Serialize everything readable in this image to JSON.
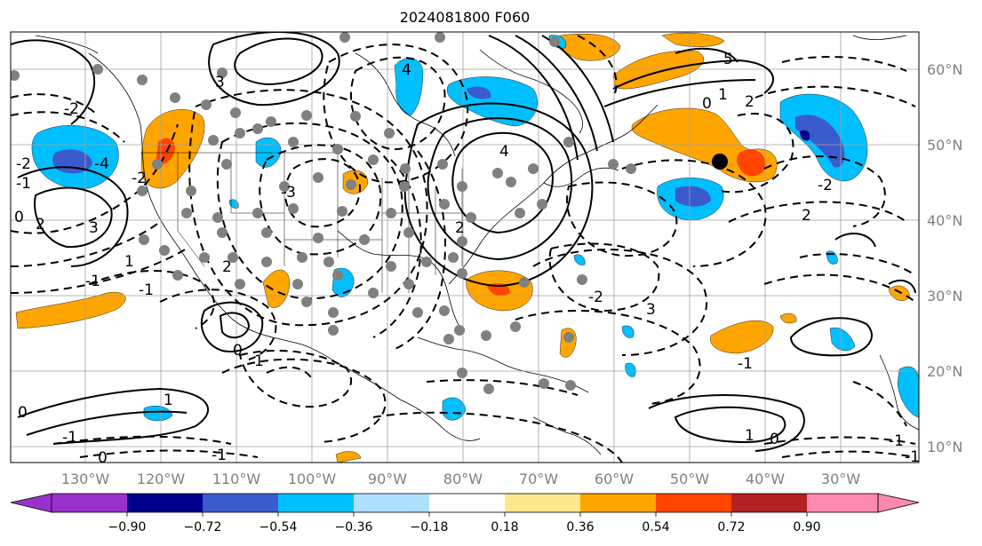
{
  "title": "2024081800 F060",
  "map": {
    "lon_labels": [
      "130°W",
      "120°W",
      "110°W",
      "100°W",
      "90°W",
      "80°W",
      "70°W",
      "60°W",
      "50°W",
      "40°W",
      "30°W"
    ],
    "lat_labels": [
      "60°N",
      "50°N",
      "40°N",
      "30°N",
      "20°N",
      "10°N"
    ],
    "contour_labels": [
      "4",
      "5",
      "0",
      "1",
      "2",
      "3",
      "-2",
      "-1",
      "0",
      "2",
      "-2",
      "-4",
      "-2",
      "3",
      "4",
      "2",
      "-3",
      "2",
      "1",
      "-1",
      "-1",
      "0",
      "1",
      "1",
      "0",
      "-1",
      "0",
      "-1",
      "-2",
      "3",
      "-1",
      "1",
      "2",
      "-2",
      "0",
      "-1",
      "-1"
    ],
    "marker_color": "#000000",
    "station_dot_color": "#808080"
  },
  "colorbar": {
    "ticks": [
      "−0.90",
      "−0.72",
      "−0.54",
      "−0.36",
      "−0.18",
      "0.18",
      "0.36",
      "0.54",
      "0.72",
      "0.90"
    ],
    "colors": [
      "#9932cc",
      "#00008b",
      "#3b5bcc",
      "#00bfff",
      "#b0e0ff",
      "#ffffff",
      "#ffe88c",
      "#ffa500",
      "#ff4500",
      "#b22222",
      "#ff88b0"
    ]
  }
}
